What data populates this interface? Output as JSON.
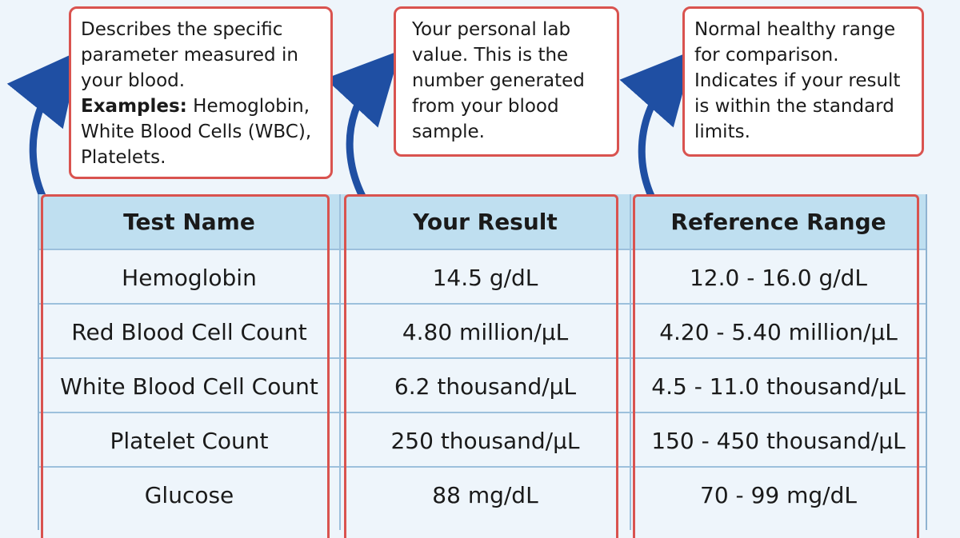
{
  "callouts": {
    "test_name": {
      "text": "Describes the specific parameter measured in your blood.",
      "examples_label": "Examples:",
      "examples_text": " Hemoglobin, White Blood Cells (WBC), Platelets."
    },
    "your_result": {
      "text": "Your personal lab value. This is the number generated from your blood sample."
    },
    "reference_range": {
      "text": "Normal healthy range for comparison. Indicates if your result is within the standard limits."
    }
  },
  "table": {
    "headers": [
      "Test Name",
      "Your Result",
      "Reference Range"
    ],
    "rows": [
      [
        "Hemoglobin",
        "14.5 g/dL",
        "12.0 - 16.0 g/dL"
      ],
      [
        "Red Blood Cell Count",
        "4.80 million/µL",
        "4.20 - 5.40 million/µL"
      ],
      [
        "White Blood Cell Count",
        "6.2 thousand/µL",
        "4.5 - 11.0 thousand/µL"
      ],
      [
        "Platelet Count",
        "250 thousand/µL",
        "150 - 450 thousand/µL"
      ],
      [
        "Glucose",
        "88 mg/dL",
        "70 - 99 mg/dL"
      ]
    ]
  },
  "colors": {
    "highlight_border": "#d9534f",
    "header_bg": "#bfdff0",
    "arrow": "#1f4fa3",
    "background": "#eef5fb"
  },
  "icons": [
    "curved-arrow-icon"
  ]
}
